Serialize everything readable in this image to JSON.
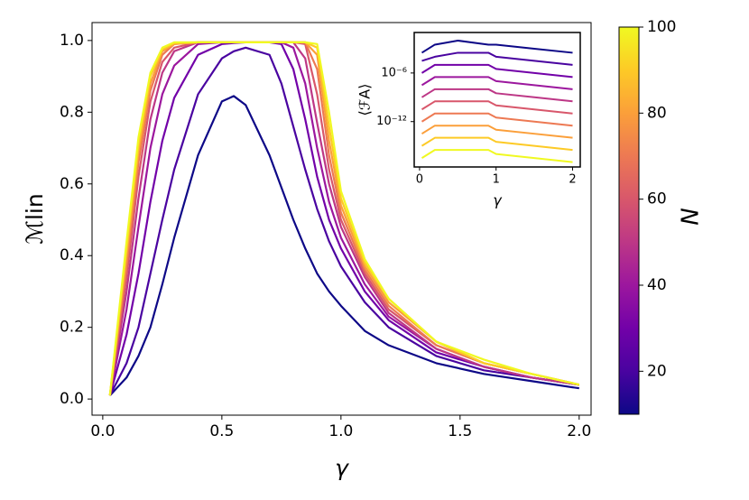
{
  "chart_data": [
    {
      "type": "line",
      "xlabel": "γ",
      "ylabel": "ℳlin",
      "x": [
        0.03,
        0.1,
        0.15,
        0.2,
        0.25,
        0.3,
        0.4,
        0.5,
        0.55,
        0.6,
        0.7,
        0.75,
        0.8,
        0.85,
        0.9,
        0.95,
        1.0,
        1.1,
        1.2,
        1.4,
        1.6,
        1.8,
        2.0
      ],
      "series": [
        {
          "color": "#0d0887",
          "values": [
            0.01,
            0.06,
            0.12,
            0.2,
            0.32,
            0.45,
            0.68,
            0.83,
            0.845,
            0.82,
            0.68,
            0.59,
            0.5,
            0.42,
            0.35,
            0.3,
            0.26,
            0.19,
            0.15,
            0.1,
            0.07,
            0.05,
            0.03
          ]
        },
        {
          "color": "#4903a0",
          "values": [
            0.01,
            0.1,
            0.2,
            0.35,
            0.5,
            0.64,
            0.85,
            0.95,
            0.97,
            0.98,
            0.96,
            0.88,
            0.76,
            0.64,
            0.53,
            0.44,
            0.37,
            0.27,
            0.2,
            0.12,
            0.08,
            0.06,
            0.04
          ]
        },
        {
          "color": "#7201a8",
          "values": [
            0.01,
            0.18,
            0.35,
            0.55,
            0.72,
            0.84,
            0.96,
            0.99,
            0.993,
            0.995,
            0.995,
            0.99,
            0.92,
            0.78,
            0.62,
            0.5,
            0.42,
            0.3,
            0.22,
            0.13,
            0.09,
            0.06,
            0.04
          ]
        },
        {
          "color": "#9c179e",
          "values": [
            0.01,
            0.25,
            0.48,
            0.7,
            0.85,
            0.93,
            0.99,
            0.995,
            0.995,
            0.995,
            0.995,
            0.995,
            0.98,
            0.88,
            0.7,
            0.55,
            0.45,
            0.32,
            0.23,
            0.14,
            0.09,
            0.06,
            0.04
          ]
        },
        {
          "color": "#bd3786",
          "values": [
            0.01,
            0.3,
            0.56,
            0.78,
            0.91,
            0.97,
            0.995,
            0.995,
            0.995,
            0.995,
            0.995,
            0.995,
            0.995,
            0.95,
            0.77,
            0.6,
            0.48,
            0.34,
            0.24,
            0.14,
            0.09,
            0.06,
            0.04
          ]
        },
        {
          "color": "#d8576b",
          "values": [
            0.01,
            0.34,
            0.62,
            0.83,
            0.94,
            0.98,
            0.995,
            0.995,
            0.995,
            0.995,
            0.995,
            0.995,
            0.995,
            0.99,
            0.85,
            0.64,
            0.5,
            0.35,
            0.25,
            0.15,
            0.1,
            0.07,
            0.04
          ]
        },
        {
          "color": "#ed7953",
          "values": [
            0.01,
            0.37,
            0.66,
            0.86,
            0.96,
            0.99,
            0.995,
            0.995,
            0.995,
            0.995,
            0.995,
            0.995,
            0.995,
            0.995,
            0.92,
            0.68,
            0.52,
            0.36,
            0.26,
            0.15,
            0.1,
            0.07,
            0.04
          ]
        },
        {
          "color": "#fb9f3a",
          "values": [
            0.01,
            0.4,
            0.69,
            0.88,
            0.97,
            0.99,
            0.995,
            0.995,
            0.995,
            0.995,
            0.995,
            0.995,
            0.995,
            0.995,
            0.96,
            0.72,
            0.54,
            0.37,
            0.27,
            0.16,
            0.1,
            0.07,
            0.04
          ]
        },
        {
          "color": "#fdca26",
          "values": [
            0.01,
            0.42,
            0.71,
            0.9,
            0.975,
            0.993,
            0.995,
            0.995,
            0.995,
            0.995,
            0.995,
            0.995,
            0.995,
            0.995,
            0.98,
            0.76,
            0.56,
            0.38,
            0.28,
            0.16,
            0.1,
            0.07,
            0.04
          ]
        },
        {
          "color": "#f0f921",
          "values": [
            0.01,
            0.44,
            0.73,
            0.91,
            0.98,
            0.995,
            0.995,
            0.995,
            0.995,
            0.995,
            0.995,
            0.995,
            0.995,
            0.995,
            0.99,
            0.8,
            0.58,
            0.39,
            0.28,
            0.16,
            0.11,
            0.07,
            0.04
          ]
        }
      ],
      "xlim": [
        -0.045,
        2.05
      ],
      "xticks": [
        {
          "value": 0,
          "label": "0.0"
        },
        0.5,
        {
          "value": 1,
          "label": "1.0"
        },
        1.5,
        {
          "value": 2,
          "label": "2.0"
        }
      ],
      "ylim": [
        -0.045,
        1.05
      ],
      "yticks": [
        {
          "value": 0,
          "label": "0.0"
        },
        0.2,
        0.4,
        0.6,
        0.8,
        {
          "value": 1,
          "label": "1.0"
        }
      ],
      "colorbar": {
        "label": "N",
        "lim": [
          10,
          100
        ],
        "ticks": [
          20,
          40,
          60,
          80,
          100
        ]
      }
    },
    {
      "type": "line",
      "xlabel": "γ",
      "ylabel": "⟨ℱA⟩",
      "log_y": true,
      "x": [
        0.03,
        0.2,
        0.5,
        0.9,
        1.0,
        1.5,
        2.0
      ],
      "series": [
        {
          "color": "#0d0887",
          "values": [
            0.000316,
            0.00316,
            0.01,
            0.00316,
            0.00316,
            0.001,
            0.000316
          ]
        },
        {
          "color": "#4903a0",
          "values": [
            3.16e-05,
            0.0001,
            0.000316,
            0.000316,
            0.0001,
            3.16e-05,
            1e-05
          ]
        },
        {
          "color": "#7201a8",
          "values": [
            1e-06,
            1e-05,
            1e-05,
            1e-05,
            3.16e-06,
            1e-06,
            3.16e-07
          ]
        },
        {
          "color": "#9c179e",
          "values": [
            3.16e-08,
            3.16e-07,
            3.16e-07,
            3.16e-07,
            1e-07,
            3.16e-08,
            1e-08
          ]
        },
        {
          "color": "#bd3786",
          "values": [
            1e-09,
            1e-08,
            1e-08,
            1e-08,
            3.16e-09,
            1e-09,
            3.16e-10
          ]
        },
        {
          "color": "#d8576b",
          "values": [
            3.16e-11,
            3.16e-10,
            3.16e-10,
            3.16e-10,
            1e-10,
            3.16e-11,
            1e-11
          ]
        },
        {
          "color": "#ed7953",
          "values": [
            1e-12,
            1e-11,
            1e-11,
            1e-11,
            3.16e-12,
            1e-12,
            3.16e-13
          ]
        },
        {
          "color": "#fb9f3a",
          "values": [
            3.16e-14,
            3.16e-13,
            3.16e-13,
            3.16e-13,
            1e-13,
            3.16e-14,
            1e-14
          ]
        },
        {
          "color": "#fdca26",
          "values": [
            1e-15,
            1e-14,
            1e-14,
            1e-14,
            3.16e-15,
            1e-15,
            3.16e-16
          ]
        },
        {
          "color": "#f0f921",
          "values": [
            3.16e-17,
            3.16e-16,
            3.16e-16,
            3.16e-16,
            1e-16,
            3.16e-17,
            1e-17
          ]
        }
      ],
      "xlim": [
        -0.07,
        2.1
      ],
      "xticks": [
        0,
        1,
        2
      ],
      "ylim": [
        2.5e-18,
        0.1
      ],
      "yticks": [
        {
          "value": 1e-06,
          "label": "10⁻⁶"
        },
        {
          "value": 1e-12,
          "label": "10⁻¹²"
        }
      ]
    }
  ]
}
